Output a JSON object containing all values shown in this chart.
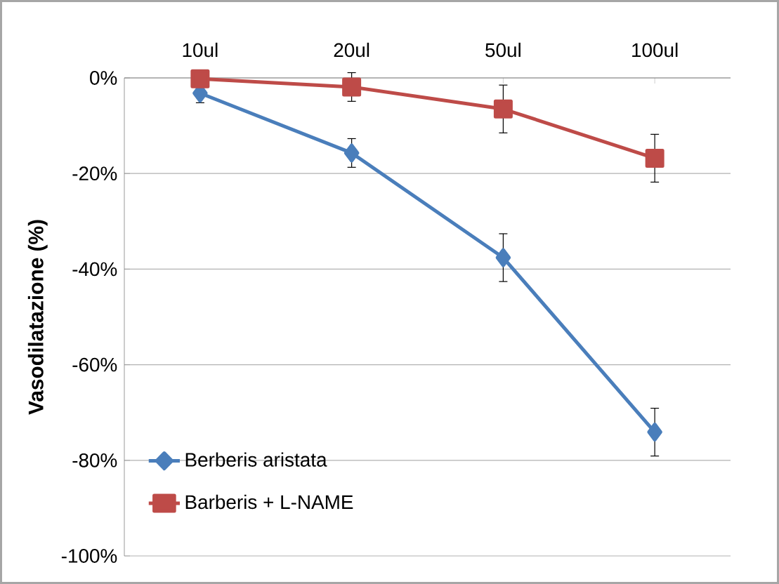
{
  "chart_data": {
    "type": "line",
    "ylabel": "Vasodilatazione (%)",
    "categories": [
      "10ul",
      "20ul",
      "50ul",
      "100ul"
    ],
    "series": [
      {
        "name": "Berberis aristata",
        "color": "#4a7ebb",
        "marker": "diamond",
        "values": [
          -3.2,
          -15.7,
          -37.6,
          -74.1
        ],
        "errors": [
          2,
          3,
          5,
          5
        ]
      },
      {
        "name": "Barberis + L-NAME",
        "color": "#be4b48",
        "marker": "square",
        "values": [
          -0.2,
          -1.9,
          -6.5,
          -16.8
        ],
        "errors": [
          null,
          3,
          5,
          5
        ]
      }
    ],
    "ylim": [
      -100,
      0
    ],
    "yticks": [
      {
        "value": 0,
        "label": "0%"
      },
      {
        "value": -20,
        "label": "-20%"
      },
      {
        "value": -40,
        "label": "-40%"
      },
      {
        "value": -60,
        "label": "-60%"
      },
      {
        "value": -80,
        "label": "-80%"
      },
      {
        "value": -100,
        "label": "-100%"
      }
    ],
    "grid": "y",
    "legend": "bottom left",
    "line_style": "solid"
  }
}
